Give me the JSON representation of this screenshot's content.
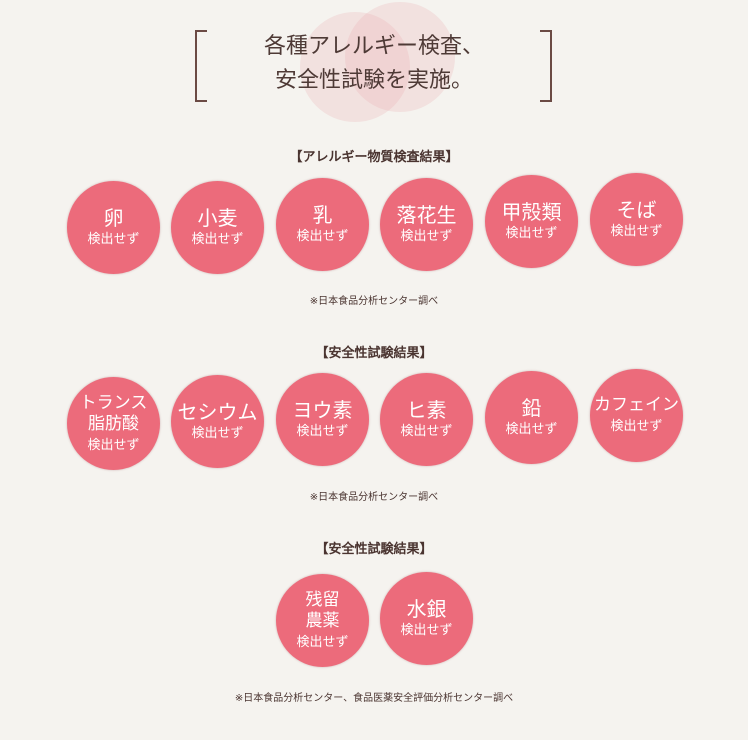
{
  "header": {
    "line1": "各種アレルギー検査、",
    "line2": "安全性試験を実施。"
  },
  "colors": {
    "circle": "#ec6b7b",
    "text": "#4e3a36"
  },
  "sections": [
    {
      "heading": "【アレルギー物質検査結果】",
      "note": "※日本食品分析センター調べ",
      "items": [
        {
          "name": "卵",
          "result": "検出せず"
        },
        {
          "name": "小麦",
          "result": "検出せず"
        },
        {
          "name": "乳",
          "result": "検出せず"
        },
        {
          "name": "落花生",
          "result": "検出せず"
        },
        {
          "name": "甲殻類",
          "result": "検出せず"
        },
        {
          "name": "そば",
          "result": "検出せず"
        }
      ]
    },
    {
      "heading": "【安全性試験結果】",
      "note": "※日本食品分析センター調べ",
      "items": [
        {
          "name": "トランス\n脂肪酸",
          "result": "検出せず"
        },
        {
          "name": "セシウム",
          "result": "検出せず"
        },
        {
          "name": "ヨウ素",
          "result": "検出せず"
        },
        {
          "name": "ヒ素",
          "result": "検出せず"
        },
        {
          "name": "鉛",
          "result": "検出せず"
        },
        {
          "name": "カフェイン",
          "result": "検出せず"
        }
      ]
    },
    {
      "heading": "【安全性試験結果】",
      "note": "※日本食品分析センター、食品医薬安全評価分析センター調べ",
      "items": [
        {
          "name": "残留\n農薬",
          "result": "検出せず"
        },
        {
          "name": "水銀",
          "result": "検出せず"
        }
      ]
    }
  ]
}
